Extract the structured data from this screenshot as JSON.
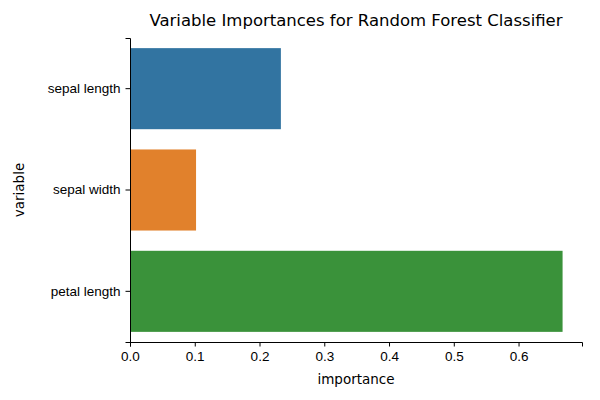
{
  "chart_data": {
    "type": "bar",
    "orientation": "horizontal",
    "title": "Variable Importances for Random Forest Classifier",
    "x_label": "importance",
    "y_label": "variable",
    "categories": [
      "sepal length",
      "sepal width",
      "petal length"
    ],
    "values": [
      0.233,
      0.102,
      0.668
    ],
    "colors": [
      "#3274a1",
      "#e1812c",
      "#3a923a"
    ],
    "xlim": [
      0,
      0.698
    ],
    "xticks": [
      {
        "value": 0,
        "label": "0.0"
      },
      0.1,
      0.2,
      0.3,
      0.4,
      0.5,
      0.6
    ],
    "grid": false
  }
}
